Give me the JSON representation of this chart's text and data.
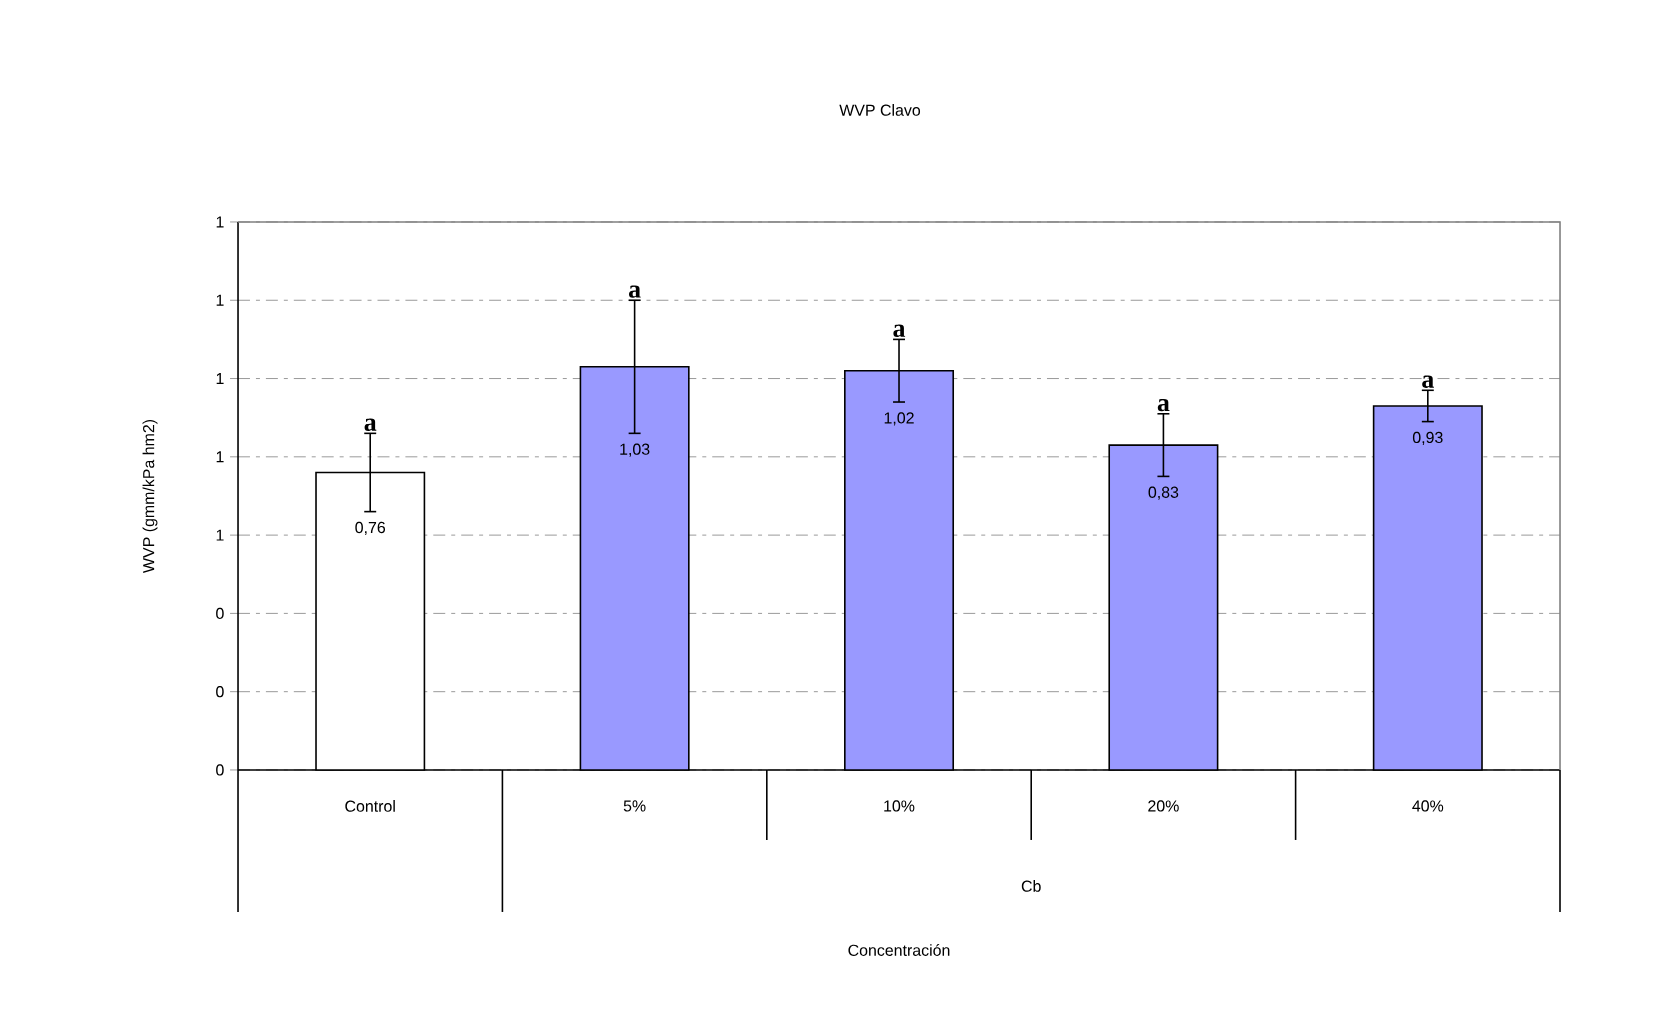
{
  "chart_data": {
    "type": "bar",
    "title": "WVP Clavo",
    "ylabel": "WVP (gmm/kPa hm2)",
    "categories": [
      "Control",
      "5%",
      "10%",
      "20%",
      "40%"
    ],
    "values": [
      0.76,
      1.03,
      1.02,
      0.83,
      0.93
    ],
    "colors": [
      "#ffffff",
      "#9999ff",
      "#9999ff",
      "#9999ff",
      "#9999ff"
    ],
    "errors": [
      0.1,
      0.17,
      0.08,
      0.08,
      0.04
    ],
    "value_labels": [
      "0,76",
      "1,03",
      "1,02",
      "0,83",
      "0,93"
    ],
    "annotations": [
      "a",
      "a",
      "a",
      "a",
      "a",
      "Cb",
      "Concentración"
    ],
    "ylim": [
      0,
      1.4
    ],
    "yticks": [
      {
        "value": 0,
        "label": "0"
      },
      {
        "value": 0.2,
        "label": "0"
      },
      {
        "value": 0.4,
        "label": "0"
      },
      {
        "value": 0.6,
        "label": "1"
      },
      {
        "value": 0.8,
        "label": "1"
      },
      {
        "value": 1.0,
        "label": "1"
      },
      {
        "value": 1.2,
        "label": "1"
      },
      {
        "value": 1.4,
        "label": "1"
      }
    ],
    "grid": "y"
  }
}
